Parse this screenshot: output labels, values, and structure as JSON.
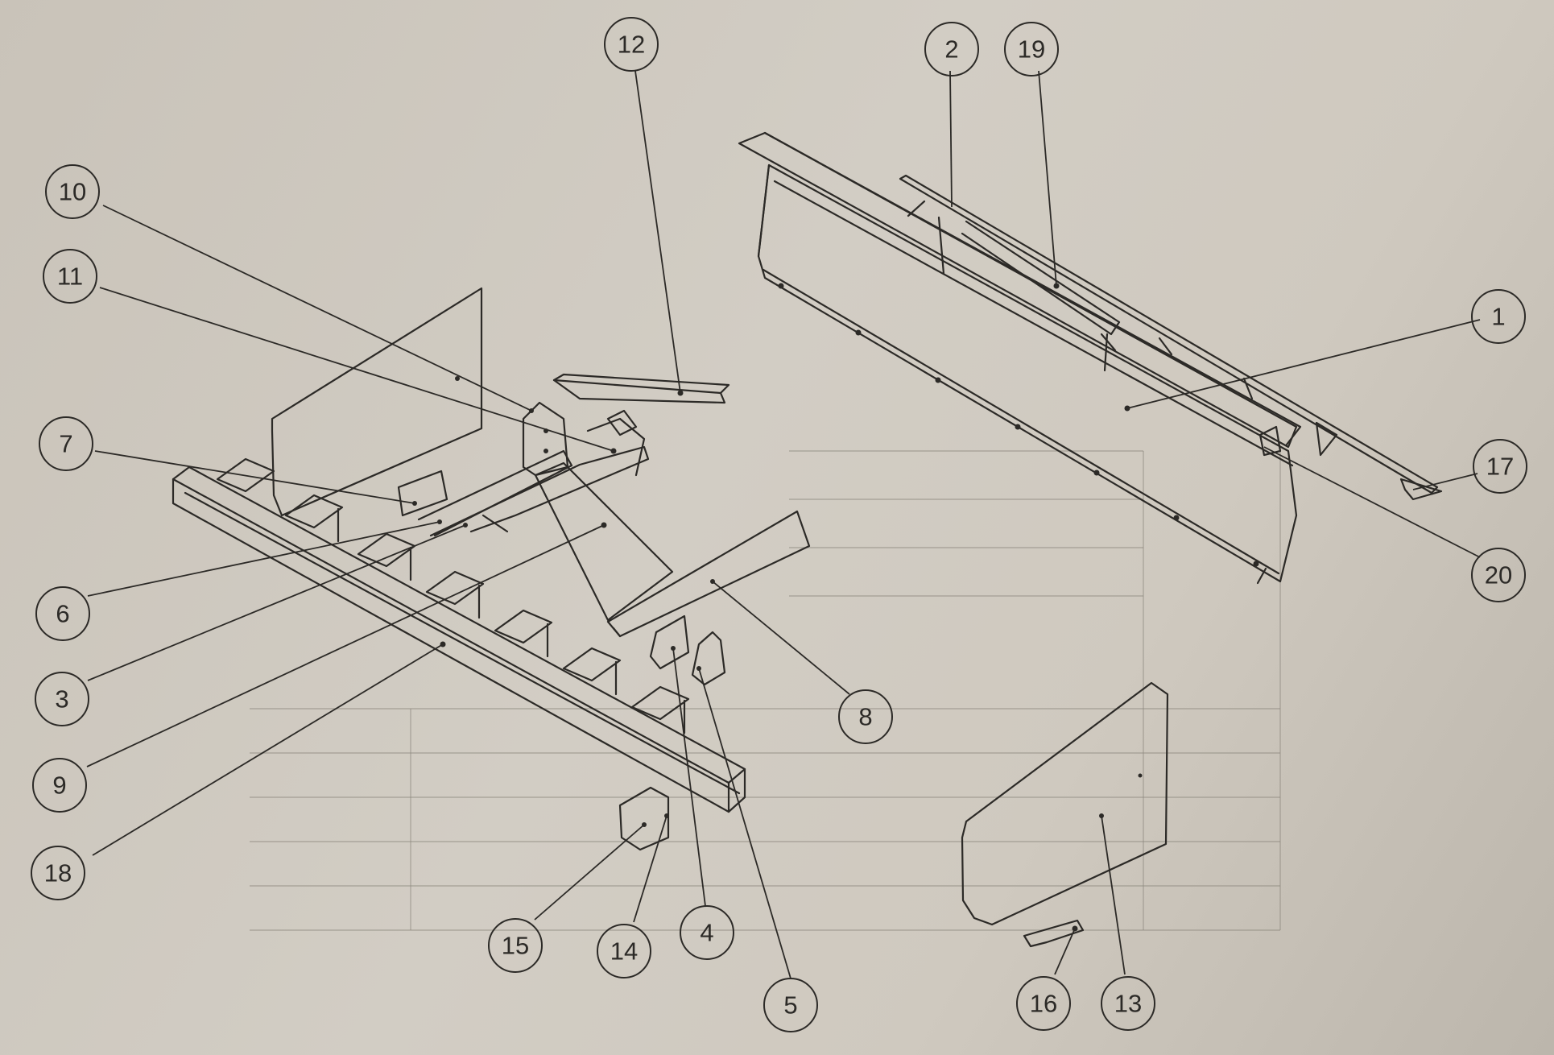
{
  "callouts": [
    {
      "id": "1",
      "label": "1"
    },
    {
      "id": "2",
      "label": "2"
    },
    {
      "id": "3",
      "label": "3"
    },
    {
      "id": "4",
      "label": "4"
    },
    {
      "id": "5",
      "label": "5"
    },
    {
      "id": "6",
      "label": "6"
    },
    {
      "id": "7",
      "label": "7"
    },
    {
      "id": "8",
      "label": "8"
    },
    {
      "id": "9",
      "label": "9"
    },
    {
      "id": "10",
      "label": "10"
    },
    {
      "id": "11",
      "label": "11"
    },
    {
      "id": "12",
      "label": "12"
    },
    {
      "id": "13",
      "label": "13"
    },
    {
      "id": "14",
      "label": "14"
    },
    {
      "id": "15",
      "label": "15"
    },
    {
      "id": "16",
      "label": "16"
    },
    {
      "id": "17",
      "label": "17"
    },
    {
      "id": "18",
      "label": "18"
    },
    {
      "id": "19",
      "label": "19"
    },
    {
      "id": "20",
      "label": "20"
    }
  ]
}
